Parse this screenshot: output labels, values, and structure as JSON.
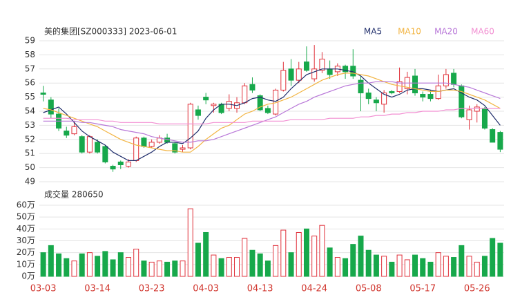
{
  "chart_data": [
    {
      "type": "candlestick",
      "title": "美的集团[SZ000333] 2023-06-01",
      "categories": [
        "03-03",
        null,
        null,
        null,
        null,
        null,
        null,
        "03-14",
        null,
        null,
        null,
        null,
        null,
        null,
        "03-23",
        null,
        null,
        null,
        null,
        null,
        null,
        "04-03",
        null,
        null,
        null,
        null,
        null,
        null,
        "04-13",
        null,
        null,
        null,
        null,
        null,
        null,
        "04-24",
        null,
        null,
        null,
        null,
        null,
        null,
        "05-08",
        null,
        null,
        null,
        null,
        null,
        null,
        "05-17",
        null,
        null,
        null,
        null,
        null,
        null,
        "05-26",
        null,
        null,
        null
      ],
      "open": [
        55.3,
        54.8,
        53.8,
        52.6,
        52.4,
        52.2,
        51.1,
        51.8,
        51.5,
        50.1,
        50.4,
        50.1,
        50.5,
        52.1,
        51.5,
        51.8,
        52.1,
        51.7,
        51.3,
        51.4,
        54.1,
        55.0,
        54.4,
        54.5,
        54.2,
        54.2,
        54.6,
        55.9,
        55.1,
        54.2,
        53.8,
        55.5,
        57.0,
        56.2,
        57.5,
        56.3,
        56.9,
        57.0,
        56.8,
        57.2,
        57.2,
        56.2,
        55.3,
        54.8,
        54.5,
        55.4,
        55.4,
        55.6,
        56.5,
        55.2,
        55.2,
        54.9,
        55.8,
        56.7,
        55.8,
        53.4,
        54.0,
        54.2,
        52.7,
        52.5
      ],
      "close": [
        55.2,
        53.8,
        52.8,
        52.3,
        52.9,
        51.1,
        52.2,
        51.1,
        50.4,
        49.9,
        50.2,
        50.4,
        52.1,
        51.5,
        51.8,
        52.1,
        51.8,
        51.1,
        51.4,
        54.5,
        53.7,
        54.8,
        54.5,
        53.9,
        54.7,
        54.6,
        55.8,
        55.5,
        54.1,
        53.9,
        55.5,
        56.9,
        56.2,
        57.0,
        56.9,
        57.0,
        57.7,
        56.6,
        57.2,
        56.8,
        56.5,
        55.3,
        54.9,
        54.6,
        55.3,
        55.3,
        56.1,
        56.4,
        55.3,
        55.0,
        54.9,
        55.8,
        56.6,
        55.9,
        53.6,
        54.1,
        54.3,
        52.8,
        51.8,
        51.3
      ],
      "high": [
        55.8,
        55.0,
        54.2,
        52.9,
        53.3,
        52.3,
        52.3,
        52.0,
        51.6,
        50.2,
        50.5,
        50.6,
        52.2,
        52.2,
        52.0,
        52.3,
        52.4,
        51.8,
        51.6,
        54.6,
        54.4,
        55.3,
        54.6,
        54.6,
        55.2,
        55.0,
        56.0,
        56.4,
        55.2,
        54.4,
        55.6,
        57.5,
        57.7,
        57.5,
        58.6,
        58.7,
        58.2,
        57.6,
        57.4,
        57.3,
        58.4,
        56.5,
        55.6,
        55.0,
        55.5,
        55.5,
        57.1,
        56.8,
        57.0,
        55.4,
        55.5,
        56.6,
        57.0,
        57.0,
        55.9,
        54.4,
        54.5,
        54.3,
        52.8,
        52.6
      ],
      "low": [
        54.7,
        53.5,
        52.6,
        52.1,
        52.3,
        51.0,
        51.0,
        51.0,
        50.3,
        49.7,
        49.9,
        50.0,
        50.4,
        51.4,
        51.4,
        51.7,
        51.7,
        51.0,
        51.1,
        51.3,
        53.4,
        54.5,
        53.9,
        53.8,
        54.0,
        53.9,
        54.5,
        55.3,
        54.0,
        53.8,
        53.7,
        55.4,
        55.8,
        56.0,
        56.8,
        56.1,
        56.7,
        56.3,
        56.5,
        56.3,
        56.3,
        54.0,
        54.5,
        54.0,
        53.9,
        55.2,
        55.3,
        55.2,
        55.1,
        54.7,
        54.7,
        54.8,
        55.6,
        55.7,
        53.5,
        52.7,
        53.2,
        52.7,
        51.8,
        51.1
      ],
      "up_color": "#e0303a",
      "down_color": "#17a84b",
      "ylim": [
        49,
        59
      ],
      "yticks": [
        49,
        50,
        51,
        52,
        53,
        54,
        55,
        56,
        57,
        58,
        59
      ],
      "grid": true,
      "series": [
        {
          "name": "MA5",
          "color": "#1f2d6b",
          "values": [
            53.9,
            54.1,
            54.3,
            53.8,
            53.2,
            52.6,
            52.2,
            51.9,
            51.6,
            51.1,
            50.8,
            50.5,
            50.5,
            50.8,
            51.1,
            51.5,
            51.8,
            51.8,
            51.7,
            52.1,
            52.6,
            53.5,
            54.1,
            54.5,
            54.5,
            54.4,
            54.6,
            54.9,
            55.0,
            54.8,
            54.7,
            55.0,
            55.6,
            56.1,
            56.6,
            56.8,
            57.0,
            57.0,
            57.0,
            56.9,
            56.8,
            56.5,
            56.0,
            55.6,
            55.2,
            55.0,
            55.2,
            55.5,
            55.6,
            55.6,
            55.5,
            55.4,
            55.5,
            55.6,
            55.3,
            55.0,
            54.8,
            54.4,
            53.7,
            53.0
          ]
        },
        {
          "name": "MA10",
          "color": "#f2b441",
          "values": [
            54.2,
            54.1,
            53.9,
            53.7,
            53.5,
            53.3,
            53.1,
            52.9,
            52.6,
            52.3,
            52.0,
            51.8,
            51.6,
            51.5,
            51.4,
            51.3,
            51.2,
            51.2,
            51.1,
            51.1,
            51.5,
            52.0,
            52.4,
            52.8,
            53.0,
            53.4,
            53.8,
            54.0,
            54.3,
            54.5,
            54.6,
            54.8,
            55.0,
            55.3,
            55.6,
            55.9,
            56.2,
            56.4,
            56.6,
            56.7,
            56.7,
            56.6,
            56.5,
            56.3,
            56.1,
            55.9,
            55.8,
            55.7,
            55.6,
            55.5,
            55.4,
            55.4,
            55.5,
            55.5,
            55.4,
            55.2,
            55.0,
            54.8,
            54.5,
            54.2
          ]
        },
        {
          "name": "MA20",
          "color": "#b877d8",
          "values": [
            53.3,
            53.3,
            53.3,
            53.3,
            53.3,
            53.2,
            53.2,
            53.1,
            53.0,
            52.9,
            52.7,
            52.6,
            52.5,
            52.4,
            52.2,
            52.1,
            52.0,
            51.9,
            51.8,
            51.8,
            51.9,
            51.9,
            52.0,
            52.2,
            52.4,
            52.6,
            52.8,
            53.0,
            53.2,
            53.4,
            53.6,
            53.9,
            54.2,
            54.5,
            54.7,
            55.0,
            55.2,
            55.4,
            55.6,
            55.8,
            55.9,
            56.0,
            56.0,
            56.1,
            56.1,
            56.1,
            56.0,
            56.0,
            56.0,
            56.0,
            56.0,
            56.0,
            56.0,
            55.9,
            55.8,
            55.7,
            55.5,
            55.3,
            55.1,
            54.9
          ]
        },
        {
          "name": "MA60",
          "color": "#f28fd2",
          "values": [
            53.5,
            53.5,
            53.5,
            53.5,
            53.4,
            53.4,
            53.4,
            53.4,
            53.3,
            53.3,
            53.2,
            53.2,
            53.2,
            53.2,
            53.2,
            53.1,
            53.1,
            53.1,
            53.1,
            53.1,
            53.1,
            53.1,
            53.2,
            53.2,
            53.2,
            53.2,
            53.2,
            53.3,
            53.3,
            53.3,
            53.3,
            53.3,
            53.4,
            53.4,
            53.4,
            53.4,
            53.4,
            53.5,
            53.5,
            53.5,
            53.5,
            53.6,
            53.6,
            53.7,
            53.7,
            53.8,
            53.8,
            53.9,
            53.9,
            54.0,
            54.0,
            54.0,
            54.1,
            54.1,
            54.2,
            54.2,
            54.2,
            54.2,
            54.2,
            54.2
          ]
        }
      ]
    },
    {
      "type": "bar",
      "title": "成交量 280650",
      "values": [
        20,
        26,
        19,
        15,
        13,
        19,
        20,
        17,
        21,
        14,
        20,
        16,
        23,
        13,
        12,
        13,
        12,
        13,
        13,
        57,
        28,
        37,
        18,
        15,
        16,
        16,
        32,
        22,
        19,
        13,
        26,
        39,
        20,
        37,
        40,
        34,
        43,
        24,
        16,
        15,
        27,
        34,
        22,
        18,
        17,
        12,
        18,
        14,
        18,
        15,
        12,
        20,
        17,
        16,
        26,
        17,
        12,
        17,
        32,
        28
      ],
      "ylim": [
        0,
        60
      ],
      "yticks": [
        {
          "value": 0,
          "label": "0万"
        },
        {
          "value": 10,
          "label": "10万"
        },
        {
          "value": 20,
          "label": "20万"
        },
        {
          "value": 30,
          "label": "30万"
        },
        {
          "value": 40,
          "label": "40万"
        },
        {
          "value": 50,
          "label": "50万"
        },
        {
          "value": 60,
          "label": "60万"
        }
      ],
      "grid": true
    }
  ]
}
